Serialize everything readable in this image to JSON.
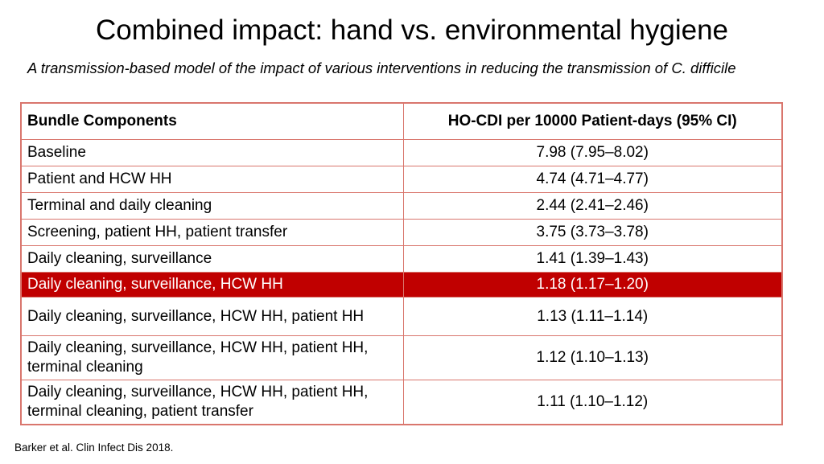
{
  "slide": {
    "title": "Combined impact: hand vs. environmental hygiene",
    "subtitle": "A transmission-based model of the impact of various interventions in reducing the transmission of C. difficile",
    "footer_citation": "Barker et al. Clin Infect Dis 2018."
  },
  "table": {
    "columns": [
      "Bundle Components",
      "HO-CDI per 10000 Patient-days (95% CI)"
    ],
    "rows": [
      {
        "component": "Baseline",
        "value": "7.98 (7.95–8.02)",
        "highlight": false
      },
      {
        "component": "Patient and HCW HH",
        "value": "4.74 (4.71–4.77)",
        "highlight": false
      },
      {
        "component": "Terminal and daily cleaning",
        "value": "2.44 (2.41–2.46)",
        "highlight": false
      },
      {
        "component": "Screening, patient HH, patient transfer",
        "value": "3.75 (3.73–3.78)",
        "highlight": false
      },
      {
        "component": "Daily cleaning, surveillance",
        "value": "1.41 (1.39–1.43)",
        "highlight": false
      },
      {
        "component": "Daily cleaning, surveillance, HCW HH",
        "value": "1.18 (1.17–1.20)",
        "highlight": true
      },
      {
        "component": "Daily cleaning, surveillance, HCW HH, patient HH",
        "value": "1.13 (1.11–1.14)",
        "highlight": false
      },
      {
        "component": "Daily cleaning, surveillance, HCW HH, patient HH, terminal cleaning",
        "value": "1.12 (1.10–1.13)",
        "highlight": false
      },
      {
        "component": "Daily cleaning, surveillance, HCW HH, patient HH, terminal cleaning, patient transfer",
        "value": "1.11 (1.10–1.12)",
        "highlight": false
      }
    ]
  },
  "colors": {
    "highlight_row_bg": "#c00000",
    "highlight_row_text": "#ffffff",
    "table_border": "#d9766d"
  }
}
